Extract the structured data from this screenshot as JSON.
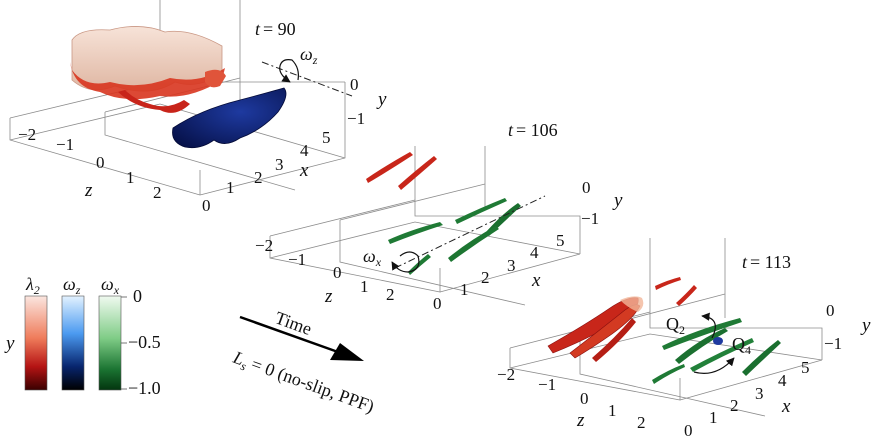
{
  "panels": [
    {
      "time_prefix": "t",
      "time_value": "= 90",
      "x_label": "x",
      "y_label": "y",
      "z_label": "z",
      "x_ticks": [
        "0",
        "1",
        "2",
        "3",
        "4",
        "5"
      ],
      "y_ticks": [
        "0",
        "−1"
      ],
      "z_ticks": [
        "−2",
        "−1",
        "0",
        "1",
        "2"
      ],
      "annotation": {
        "symbol": "ω",
        "sub": "z"
      }
    },
    {
      "time_prefix": "t",
      "time_value": "= 106",
      "x_label": "x",
      "y_label": "y",
      "z_label": "z",
      "x_ticks": [
        "0",
        "1",
        "2",
        "3",
        "4",
        "5"
      ],
      "y_ticks": [
        "0",
        "−1"
      ],
      "z_ticks": [
        "−2",
        "−1",
        "0",
        "1",
        "2"
      ],
      "annotation": {
        "symbol": "ω",
        "sub": "x"
      }
    },
    {
      "time_prefix": "t",
      "time_value": "= 113",
      "x_label": "x",
      "y_label": "y",
      "z_label": "z",
      "x_ticks": [
        "0",
        "1",
        "2",
        "3",
        "4",
        "5"
      ],
      "y_ticks": [
        "0",
        "−1"
      ],
      "z_ticks": [
        "−2",
        "−1",
        "0",
        "1",
        "2"
      ],
      "quadrant_labels": [
        {
          "letter": "Q",
          "sub": "2"
        },
        {
          "letter": "Q",
          "sub": "4"
        }
      ]
    }
  ],
  "colorbar": {
    "headers": [
      {
        "symbol": "λ",
        "sub": "2"
      },
      {
        "symbol": "ω",
        "sub": "z"
      },
      {
        "symbol": "ω",
        "sub": "x"
      }
    ],
    "side_label": "y",
    "tick_labels": [
      "0",
      "−0.5",
      "−1.0"
    ],
    "colors": {
      "lambda2": [
        "#fbe6e0",
        "#e24a2c",
        "#a50e0e",
        "#4a0000"
      ],
      "omega_z": [
        "#dcefff",
        "#3f8fe8",
        "#06246e",
        "#000000"
      ],
      "omega_x": [
        "#e6f6e6",
        "#7ecb84",
        "#1f7d35",
        "#033a12"
      ]
    }
  },
  "time_arrow": {
    "label": "Time",
    "line1": "L",
    "line1_sub": "s",
    "line1_rest": " = 0 (no-slip, PPF)"
  },
  "colors": {
    "red_structure": "#cf2a1f",
    "blue_structure": "#0a1f7c",
    "green_structure": "#1f7a35",
    "pink_surface": "#f2d6c8"
  }
}
